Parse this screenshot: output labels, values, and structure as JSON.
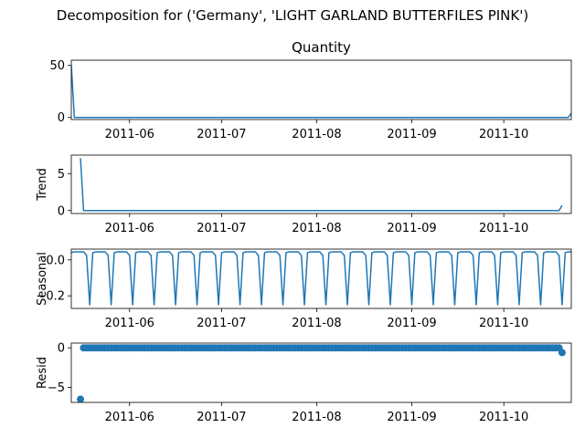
{
  "figure": {
    "suptitle": "Decomposition for ('Germany', 'LIGHT GARLAND BUTTERFILES PINK')"
  },
  "chart_data": [
    {
      "type": "line",
      "title": "Quantity",
      "ylabel": "",
      "x_range": [
        "2011-05-13",
        "2011-10-23"
      ],
      "xticks": [
        "2011-06-01",
        "2011-07-01",
        "2011-08-01",
        "2011-09-01",
        "2011-10-01"
      ],
      "xtick_labels": [
        "2011-06",
        "2011-07",
        "2011-08",
        "2011-09",
        "2011-10"
      ],
      "ylim": [
        -2,
        55
      ],
      "yticks": [
        0,
        50
      ],
      "ytick_labels": [
        "0",
        "50"
      ],
      "color": "#1f77b4",
      "series": [
        {
          "x": [
            "2011-05-13",
            "2011-05-14",
            "2011-10-22",
            "2011-10-23"
          ],
          "y": [
            50,
            0,
            0,
            4
          ]
        }
      ]
    },
    {
      "type": "line",
      "title": "",
      "ylabel": "Trend",
      "x_range": [
        "2011-05-13",
        "2011-10-23"
      ],
      "xticks": [
        "2011-06-01",
        "2011-07-01",
        "2011-08-01",
        "2011-09-01",
        "2011-10-01"
      ],
      "xtick_labels": [
        "2011-06",
        "2011-07",
        "2011-08",
        "2011-09",
        "2011-10"
      ],
      "ylim": [
        -0.4,
        7.5
      ],
      "yticks": [
        0,
        5
      ],
      "ytick_labels": [
        "0",
        "5"
      ],
      "color": "#1f77b4",
      "series": [
        {
          "x": [
            "2011-05-16",
            "2011-05-17",
            "2011-10-19",
            "2011-10-20"
          ],
          "y": [
            7.1,
            0,
            0,
            0.7
          ]
        }
      ]
    },
    {
      "type": "line",
      "title": "",
      "ylabel": "Seasonal",
      "x_range": [
        "2011-05-13",
        "2011-10-23"
      ],
      "xticks": [
        "2011-06-01",
        "2011-07-01",
        "2011-08-01",
        "2011-09-01",
        "2011-10-01"
      ],
      "xtick_labels": [
        "2011-06",
        "2011-07",
        "2011-08",
        "2011-09",
        "2011-10"
      ],
      "ylim": [
        -0.27,
        0.06
      ],
      "yticks": [
        0.0,
        -0.2
      ],
      "ytick_labels": [
        "0.0",
        "−0.2"
      ],
      "color": "#1f77b4",
      "period_days": 7,
      "pattern": [
        0.04,
        0.045,
        0.045,
        0.045,
        0.045,
        0.025,
        -0.25
      ],
      "pattern_start": "2011-05-13"
    },
    {
      "type": "scatter",
      "title": "",
      "ylabel": "Resid",
      "x_range": [
        "2011-05-13",
        "2011-10-23"
      ],
      "xticks": [
        "2011-06-01",
        "2011-07-01",
        "2011-08-01",
        "2011-09-01",
        "2011-10-01"
      ],
      "xtick_labels": [
        "2011-06",
        "2011-07",
        "2011-08",
        "2011-09",
        "2011-10"
      ],
      "ylim": [
        -6.9,
        0.6
      ],
      "yticks": [
        0,
        -5
      ],
      "ytick_labels": [
        "0",
        "−5"
      ],
      "color": "#1f77b4",
      "range_start": "2011-05-17",
      "range_end": "2011-10-19",
      "range_value": 0,
      "outliers": [
        {
          "x": "2011-05-16",
          "y": -6.5
        },
        {
          "x": "2011-10-20",
          "y": -0.6
        }
      ]
    }
  ]
}
